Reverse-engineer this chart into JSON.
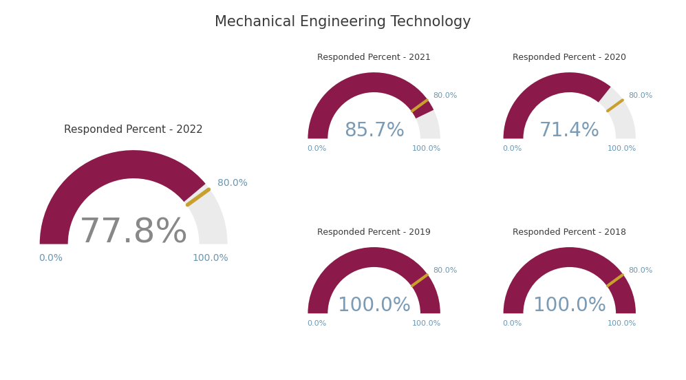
{
  "title": "Mechanical Engineering Technology",
  "title_fontsize": 15,
  "title_color": "#3a3a3a",
  "gauges": [
    {
      "label": "Responded Percent - 2022",
      "value": 77.8,
      "display": "77.8%",
      "large": true
    },
    {
      "label": "Responded Percent - 2021",
      "value": 85.7,
      "display": "85.7%",
      "large": false
    },
    {
      "label": "Responded Percent - 2020",
      "value": 71.4,
      "display": "71.4%",
      "large": false
    },
    {
      "label": "Responded Percent - 2019",
      "value": 100.0,
      "display": "100.0%",
      "large": false
    },
    {
      "label": "Responded Percent - 2018",
      "value": 100.0,
      "display": "100.0%",
      "large": false
    }
  ],
  "gauge_color": "#8B1A4A",
  "background_color": "#EBEBEB",
  "marker_color": "#C8A030",
  "value_color_large": "#888888",
  "value_color_small": "#7A9BB5",
  "label_color": "#3a3a3a",
  "tick_color": "#6A96B0",
  "marker_value": 80.0,
  "fig_bg": "#ffffff"
}
